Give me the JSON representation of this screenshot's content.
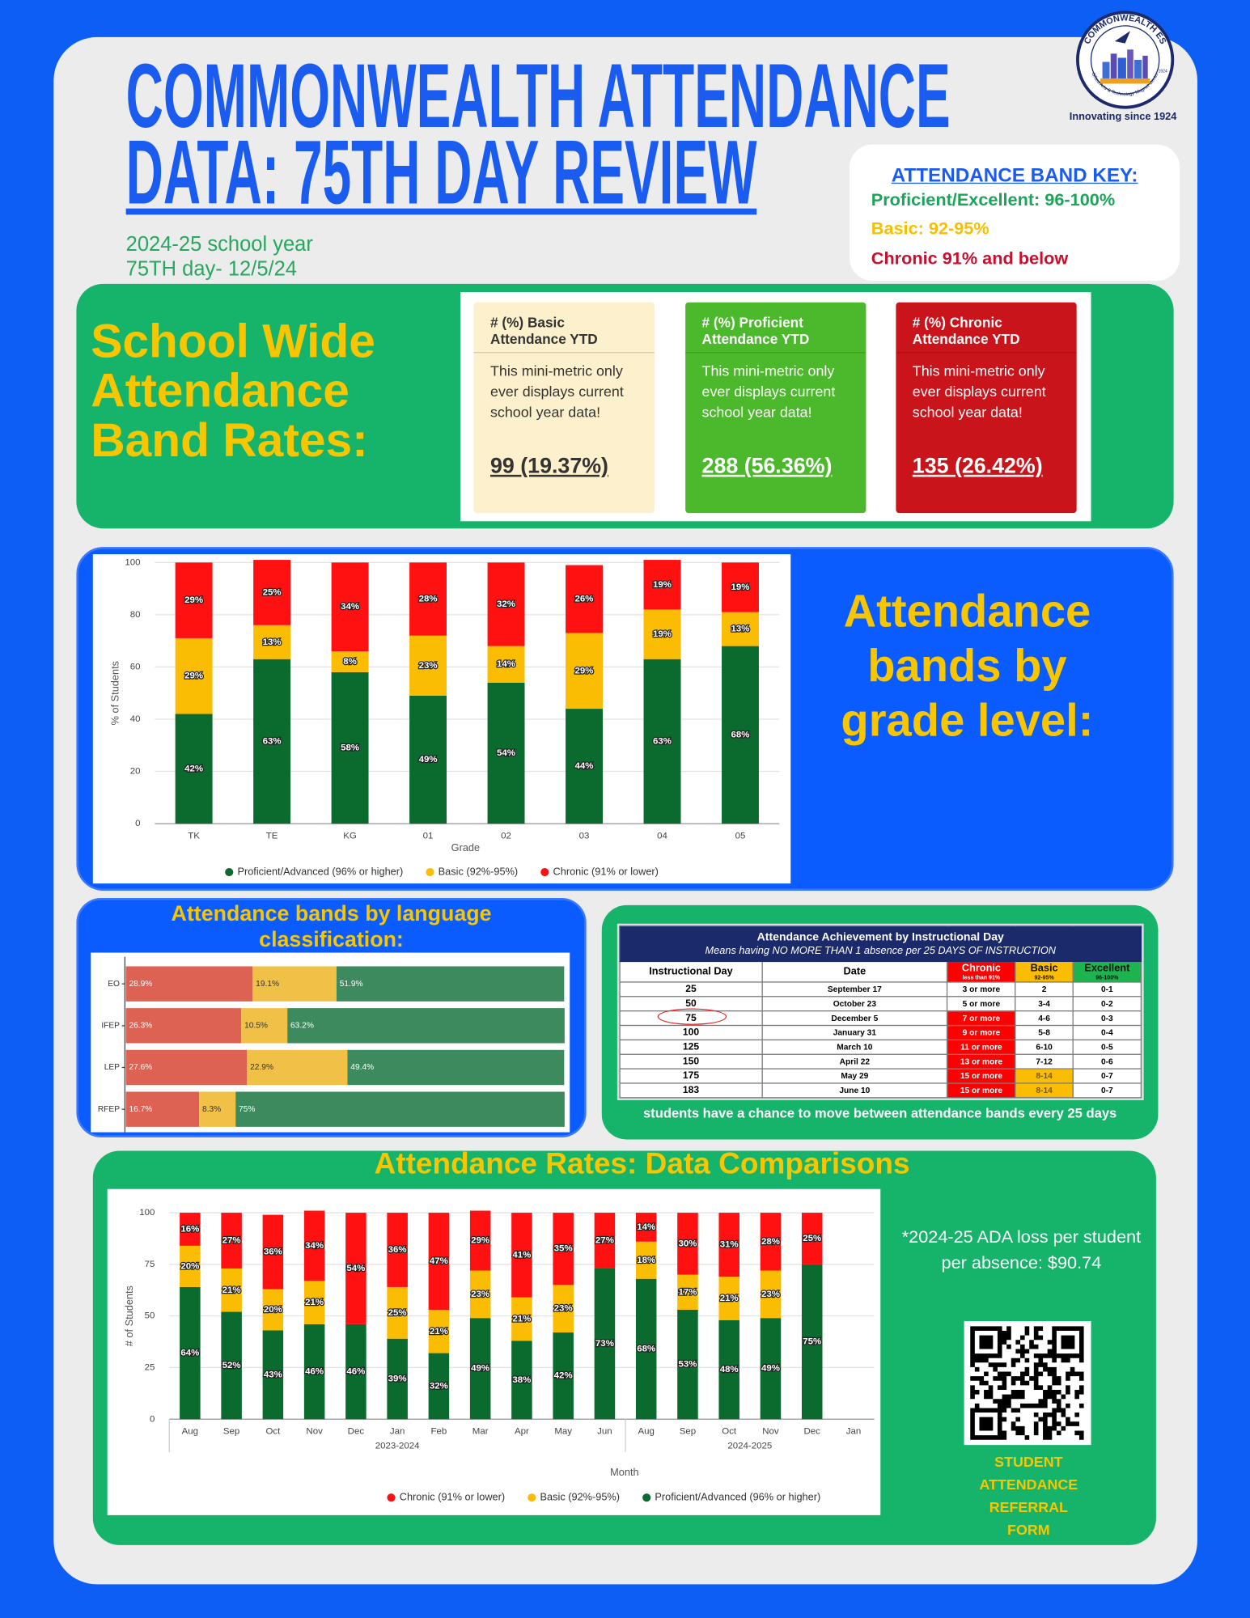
{
  "header": {
    "title_line1": "COMMONWEALTH ATTENDANCE",
    "title_line2": "DATA: 75TH DAY REVIEW",
    "school_year": "2024-25 school year",
    "day": "75TH day- 12/5/24"
  },
  "logo": {
    "name": "COMMONWEALTH ES",
    "subtitle": "Gifted Arts & Technology Magnet Center",
    "year": "1924",
    "tagline": "Innovating since 1924"
  },
  "band_key": {
    "title": "ATTENDANCE BAND KEY:",
    "items": [
      "Proficient/Excellent: 96-100%",
      "Basic: 92-95%",
      "Chronic 91% and below"
    ]
  },
  "school_wide": {
    "heading": "School Wide Attendance Band Rates:",
    "cards": [
      {
        "title": "# (%) Basic Attendance YTD",
        "note": "This mini-metric only ever displays current school year data!",
        "value": "99 (19.37%)"
      },
      {
        "title": "# (%) Proficient Attendance YTD",
        "note": "This mini-metric only ever displays current school year data!",
        "value": "288 (56.36%)"
      },
      {
        "title": "# (%) Chronic Attendance YTD",
        "note": "This mini-metric only ever displays current school year data!",
        "value": "135 (26.42%)"
      }
    ]
  },
  "grade_section": {
    "heading": "Attendance bands by grade level:"
  },
  "language_section": {
    "heading": "Attendance bands by language classification:"
  },
  "achievement_table": {
    "title": "Attendance Achievement by Instructional Day",
    "subtitle": "Means having NO MORE THAN 1 absence per 25 DAYS OF INSTRUCTION",
    "headers": [
      {
        "label": "Instructional Day"
      },
      {
        "label": "Date"
      },
      {
        "label": "Chronic",
        "sub": "less than 91%"
      },
      {
        "label": "Basic",
        "sub": "92-95%"
      },
      {
        "label": "Excellent",
        "sub": "96-100%"
      }
    ],
    "rows": [
      [
        "25",
        "September 17",
        "3 or more",
        "2",
        "0-1"
      ],
      [
        "50",
        "October 23",
        "5 or more",
        "3-4",
        "0-2"
      ],
      [
        "75",
        "December 5",
        "7 or more",
        "4-6",
        "0-3"
      ],
      [
        "100",
        "January 31",
        "9 or more",
        "5-8",
        "0-4"
      ],
      [
        "125",
        "March 10",
        "11 or more",
        "6-10",
        "0-5"
      ],
      [
        "150",
        "April 22",
        "13 or more",
        "7-12",
        "0-6"
      ],
      [
        "175",
        "May 29",
        "15 or more",
        "8-14",
        "0-7"
      ],
      [
        "183",
        "June 10",
        "15 or more",
        "8-14",
        "0-7"
      ]
    ],
    "caption": "students have a chance to move between attendance bands every 25 days"
  },
  "comparison_section": {
    "heading": "Attendance Rates: Data Comparisons",
    "ada_note": "*2024-25 ADA loss per student per absence: $90.74",
    "qr_caption": "STUDENT ATTENDANCE REFERRAL FORM"
  },
  "chart_data": [
    {
      "type": "stacked_bar",
      "x_label": "Grade",
      "y_label": "% of Students",
      "categories": [
        "TK",
        "TE",
        "KG",
        "01",
        "02",
        "03",
        "04",
        "05"
      ],
      "series": [
        {
          "name": "Proficient/Advanced (96% or higher)",
          "color": "#0b6b2e",
          "values": [
            42,
            63,
            58,
            49,
            54,
            44,
            63,
            68
          ],
          "value_labels": [
            "42%",
            "63%",
            "58%",
            "49%",
            "54%",
            "44%",
            "63%",
            "68%"
          ]
        },
        {
          "name": "Basic (92%-95%)",
          "color": "#fbbc04",
          "values": [
            29,
            13,
            8,
            23,
            14,
            29,
            19,
            13
          ],
          "value_labels": [
            "29%",
            "13%",
            "8%",
            "23%",
            "14%",
            "29%",
            "19%",
            "13%"
          ]
        },
        {
          "name": "Chronic (91% or lower)",
          "color": "#ff1111",
          "values": [
            29,
            25,
            34,
            28,
            32,
            26,
            19,
            19
          ],
          "value_labels": [
            "29%",
            "25%",
            "34%",
            "28%",
            "32%",
            "26%",
            "19%",
            "19%"
          ]
        }
      ],
      "ylim": [
        0,
        100
      ],
      "yticks": [
        0,
        20,
        40,
        60,
        80,
        100
      ],
      "grid": true,
      "legend": "bottom"
    },
    {
      "type": "horizontal_stacked_bar",
      "categories": [
        "EO",
        "IFEP",
        "LEP",
        "RFEP"
      ],
      "series": [
        {
          "color": "#dd6254",
          "values": [
            28.9,
            26.3,
            27.6,
            16.7
          ],
          "value_labels": [
            "28.9%",
            "26.3%",
            "27.6%",
            "16.7%"
          ]
        },
        {
          "color": "#f1c147",
          "values": [
            19.1,
            10.5,
            22.9,
            8.3
          ],
          "value_labels": [
            "19.1%",
            "10.5%",
            "22.9%",
            "8.3%"
          ]
        },
        {
          "color": "#3d8a5e",
          "values": [
            51.9,
            63.2,
            49.4,
            75
          ],
          "value_labels": [
            "51.9%",
            "63.2%",
            "49.4%",
            "75%"
          ]
        }
      ],
      "xlim": [
        0,
        100
      ]
    },
    {
      "type": "stacked_bar",
      "x_label": "Month",
      "y_label": "# of Students",
      "groups": [
        {
          "label": "2023-2024",
          "categories": [
            "Aug",
            "Sep",
            "Oct",
            "Nov",
            "Dec",
            "Jan",
            "Feb",
            "Mar",
            "Apr",
            "May",
            "Jun"
          ]
        },
        {
          "label": "2024-2025",
          "categories": [
            "Aug",
            "Sep",
            "Oct",
            "Nov",
            "Dec",
            "Jan"
          ]
        }
      ],
      "series": [
        {
          "name": "Chronic (91% or lower)",
          "color": "#ff1111",
          "values": [
            16,
            27,
            36,
            34,
            54,
            36,
            47,
            29,
            41,
            35,
            27,
            14,
            30,
            31,
            28,
            25,
            null
          ],
          "value_labels": [
            "16%",
            "27%",
            "36%",
            "34%",
            "54%",
            "36%",
            "47%",
            "29%",
            "41%",
            "35%",
            "27%",
            "14%",
            "30%",
            "31%",
            "28%",
            "25%",
            null
          ]
        },
        {
          "name": "Basic (92%-95%)",
          "color": "#fbbc04",
          "values": [
            20,
            21,
            20,
            21,
            null,
            25,
            21,
            23,
            21,
            23,
            null,
            18,
            17,
            21,
            23,
            null,
            null
          ],
          "value_labels": [
            "20%",
            "21%",
            "20%",
            "21%",
            null,
            "25%",
            "21%",
            "23%",
            "21%",
            "23%",
            null,
            "18%",
            "17%",
            "21%",
            "23%",
            null,
            null
          ]
        },
        {
          "name": "Proficient/Advanced (96% or higher)",
          "color": "#0b6b2e",
          "values": [
            64,
            52,
            43,
            46,
            46,
            39,
            32,
            49,
            38,
            42,
            73,
            68,
            53,
            48,
            49,
            75,
            null
          ],
          "value_labels": [
            "64%",
            "52%",
            "43%",
            "46%",
            "46%",
            "39%",
            "32%",
            "49%",
            "38%",
            "42%",
            "73%",
            "68%",
            "53%",
            "48%",
            "49%",
            "75%",
            null
          ]
        }
      ],
      "ylim": [
        0,
        100
      ],
      "yticks": [
        0,
        25,
        50,
        75,
        100
      ],
      "grid": true,
      "legend": "bottom"
    }
  ]
}
